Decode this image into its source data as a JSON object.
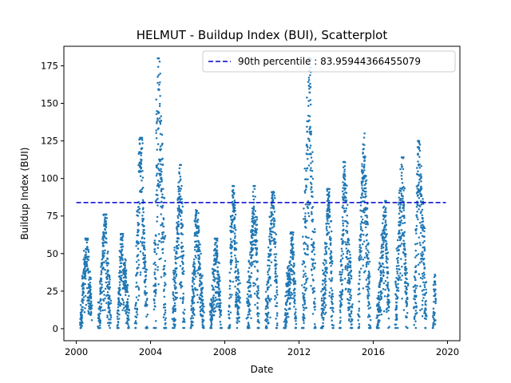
{
  "chart_data": {
    "type": "scatter",
    "title": "HELMUT - Buildup Index (BUI), Scatterplot",
    "xlabel": "Date",
    "ylabel": "Buildup Index (BUI)",
    "xlim": [
      "1999-05-01",
      "2020-09-01"
    ],
    "ylim": [
      -8,
      188
    ],
    "x_ticks": [
      "2000",
      "2004",
      "2008",
      "2012",
      "2016",
      "2020"
    ],
    "y_ticks": [
      0,
      25,
      50,
      75,
      100,
      125,
      150,
      175
    ],
    "grid": false,
    "legend": {
      "placement": "top-right",
      "entries": [
        "90th percentile : 83.95944366455079"
      ]
    },
    "reference_line": {
      "value": 83.95944366455079,
      "style": "dashed",
      "x_start": "2000-01-01",
      "x_end": "2019-12-01"
    },
    "colors": {
      "points": "#1f77b4",
      "reference_line": "#0000cd"
    },
    "seasons": [
      {
        "year": 2000,
        "start": "2000-03-20",
        "end": "2000-10-25",
        "peak": 60
      },
      {
        "year": 2001,
        "start": "2001-03-10",
        "end": "2001-11-05",
        "peak": 76
      },
      {
        "year": 2002,
        "start": "2002-03-20",
        "end": "2002-10-30",
        "peak": 63
      },
      {
        "year": 2003,
        "start": "2003-03-10",
        "end": "2003-10-20",
        "peak": 127
      },
      {
        "year": 2004,
        "start": "2004-03-05",
        "end": "2004-10-25",
        "peak": 180
      },
      {
        "year": 2005,
        "start": "2005-03-15",
        "end": "2005-10-20",
        "peak": 109
      },
      {
        "year": 2006,
        "start": "2006-03-10",
        "end": "2006-11-10",
        "peak": 81
      },
      {
        "year": 2007,
        "start": "2007-03-20",
        "end": "2007-10-20",
        "peak": 60
      },
      {
        "year": 2008,
        "start": "2008-03-20",
        "end": "2008-10-20",
        "peak": 95
      },
      {
        "year": 2009,
        "start": "2009-03-15",
        "end": "2009-10-30",
        "peak": 95
      },
      {
        "year": 2010,
        "start": "2010-03-15",
        "end": "2010-10-30",
        "peak": 91
      },
      {
        "year": 2011,
        "start": "2011-03-20",
        "end": "2011-10-30",
        "peak": 64
      },
      {
        "year": 2012,
        "start": "2012-03-10",
        "end": "2012-11-10",
        "peak": 180
      },
      {
        "year": 2013,
        "start": "2013-03-15",
        "end": "2013-10-30",
        "peak": 93
      },
      {
        "year": 2014,
        "start": "2014-03-10",
        "end": "2014-11-05",
        "peak": 111
      },
      {
        "year": 2015,
        "start": "2015-03-15",
        "end": "2015-11-05",
        "peak": 130
      },
      {
        "year": 2016,
        "start": "2016-03-10",
        "end": "2016-11-05",
        "peak": 85
      },
      {
        "year": 2017,
        "start": "2017-03-15",
        "end": "2017-11-05",
        "peak": 114
      },
      {
        "year": 2018,
        "start": "2018-03-15",
        "end": "2018-11-05",
        "peak": 125
      },
      {
        "year": 2019,
        "start": "2019-03-25",
        "end": "2019-05-10",
        "peak": 40
      }
    ]
  }
}
